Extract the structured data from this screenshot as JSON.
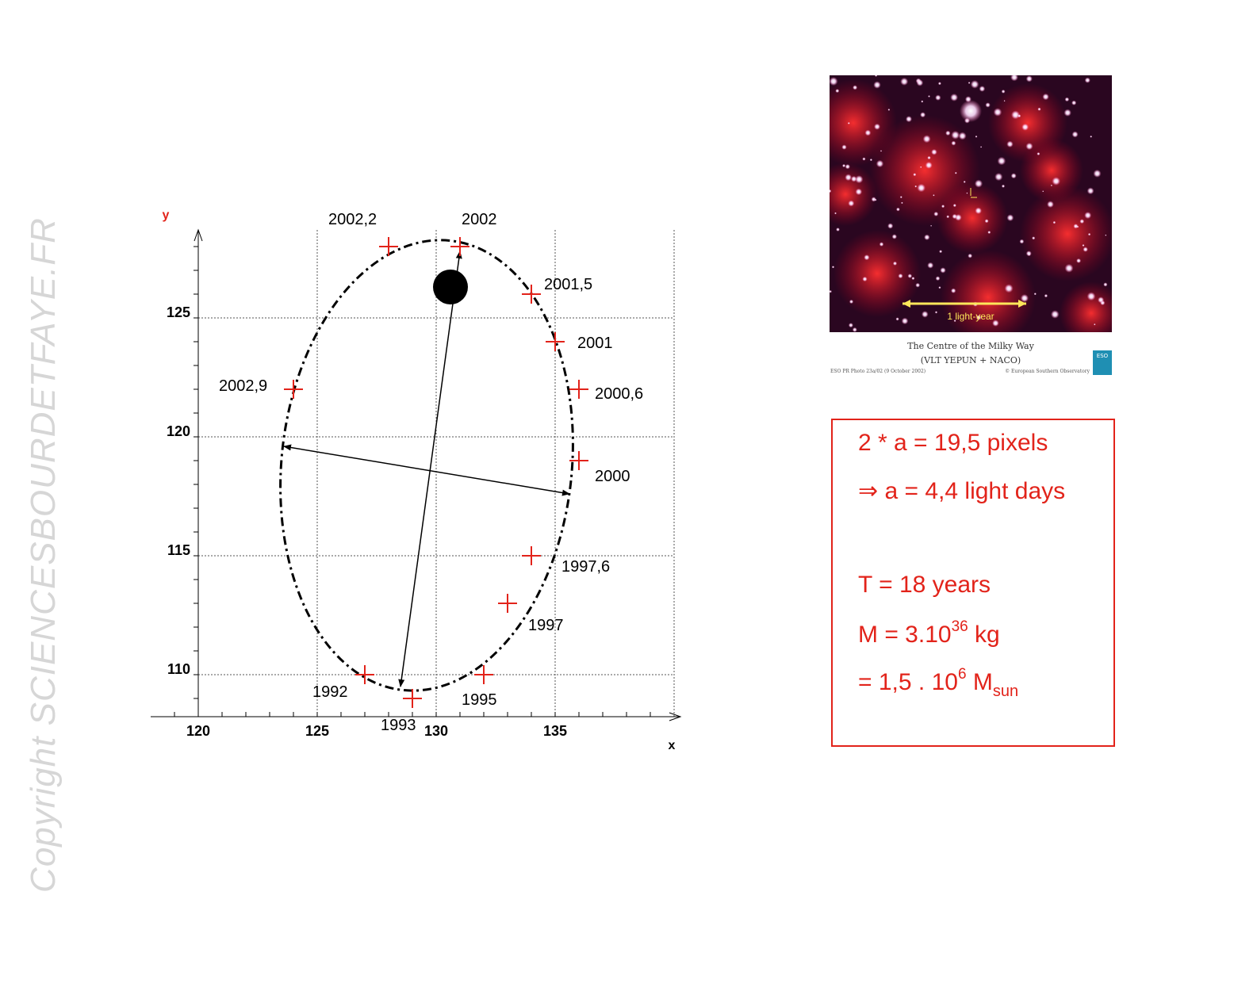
{
  "watermark": "Copyright SCIENCESBOURDETFAYE.FR",
  "chart_data": {
    "type": "scatter",
    "xlabel": "x",
    "ylabel": "y",
    "xlim": [
      118,
      139.5
    ],
    "ylim": [
      108.3,
      129
    ],
    "xticks": [
      120,
      125,
      130,
      135
    ],
    "yticks": [
      110,
      115,
      120,
      125
    ],
    "grid": true,
    "points": [
      {
        "x": 127,
        "y": 110,
        "label": "1992"
      },
      {
        "x": 129,
        "y": 109,
        "label": "1993"
      },
      {
        "x": 132,
        "y": 110,
        "label": "1995"
      },
      {
        "x": 133,
        "y": 113,
        "label": "1997"
      },
      {
        "x": 134,
        "y": 115,
        "label": "1997,6"
      },
      {
        "x": 136,
        "y": 119,
        "label": "2000"
      },
      {
        "x": 136,
        "y": 122,
        "label": "2000,6"
      },
      {
        "x": 135,
        "y": 124,
        "label": "2001"
      },
      {
        "x": 134,
        "y": 126,
        "label": "2001,5"
      },
      {
        "x": 131,
        "y": 128,
        "label": "2002"
      },
      {
        "x": 128,
        "y": 128,
        "label": "2002,2"
      },
      {
        "x": 124,
        "y": 122,
        "label": "2002,9"
      }
    ],
    "orbit_ellipse": {
      "center": [
        129.6,
        118.8
      ],
      "semi_x": 6.1,
      "semi_y": 9.5
    },
    "focus": {
      "x": 130.6,
      "y": 126.3
    },
    "major_axis": {
      "from": [
        131,
        127.8
      ],
      "to": [
        128.5,
        109.5
      ]
    },
    "minor_axis": {
      "from": [
        123.6,
        119.6
      ],
      "to": [
        135.6,
        117.6
      ]
    }
  },
  "photo": {
    "scale_label": "1 light-year",
    "caption_title": "The Centre of the Milky Way",
    "caption_subtitle": "(VLT YEPUN + NACO)",
    "credit_left": "ESO PR Photo 23a/02 (9 October 2002)",
    "credit_right": "© European Southern Observatory",
    "logo_text": "ESO"
  },
  "results": {
    "line1": "2 * a = 19,5 pixels",
    "line2_arrow": "⇒",
    "line2": "a = 4,4 light days",
    "line3": "T = 18 years",
    "line4_prefix": "M = 3.10",
    "line4_exp": "36",
    "line4_suffix": " kg",
    "line5_prefix": "= 1,5 . 10",
    "line5_exp": "6",
    "line5_mid": " M",
    "line5_sub": "sun"
  },
  "colors": {
    "marker": "#e2231a",
    "axis": "#000000",
    "grid": "#555555",
    "result": "#e2231a"
  }
}
